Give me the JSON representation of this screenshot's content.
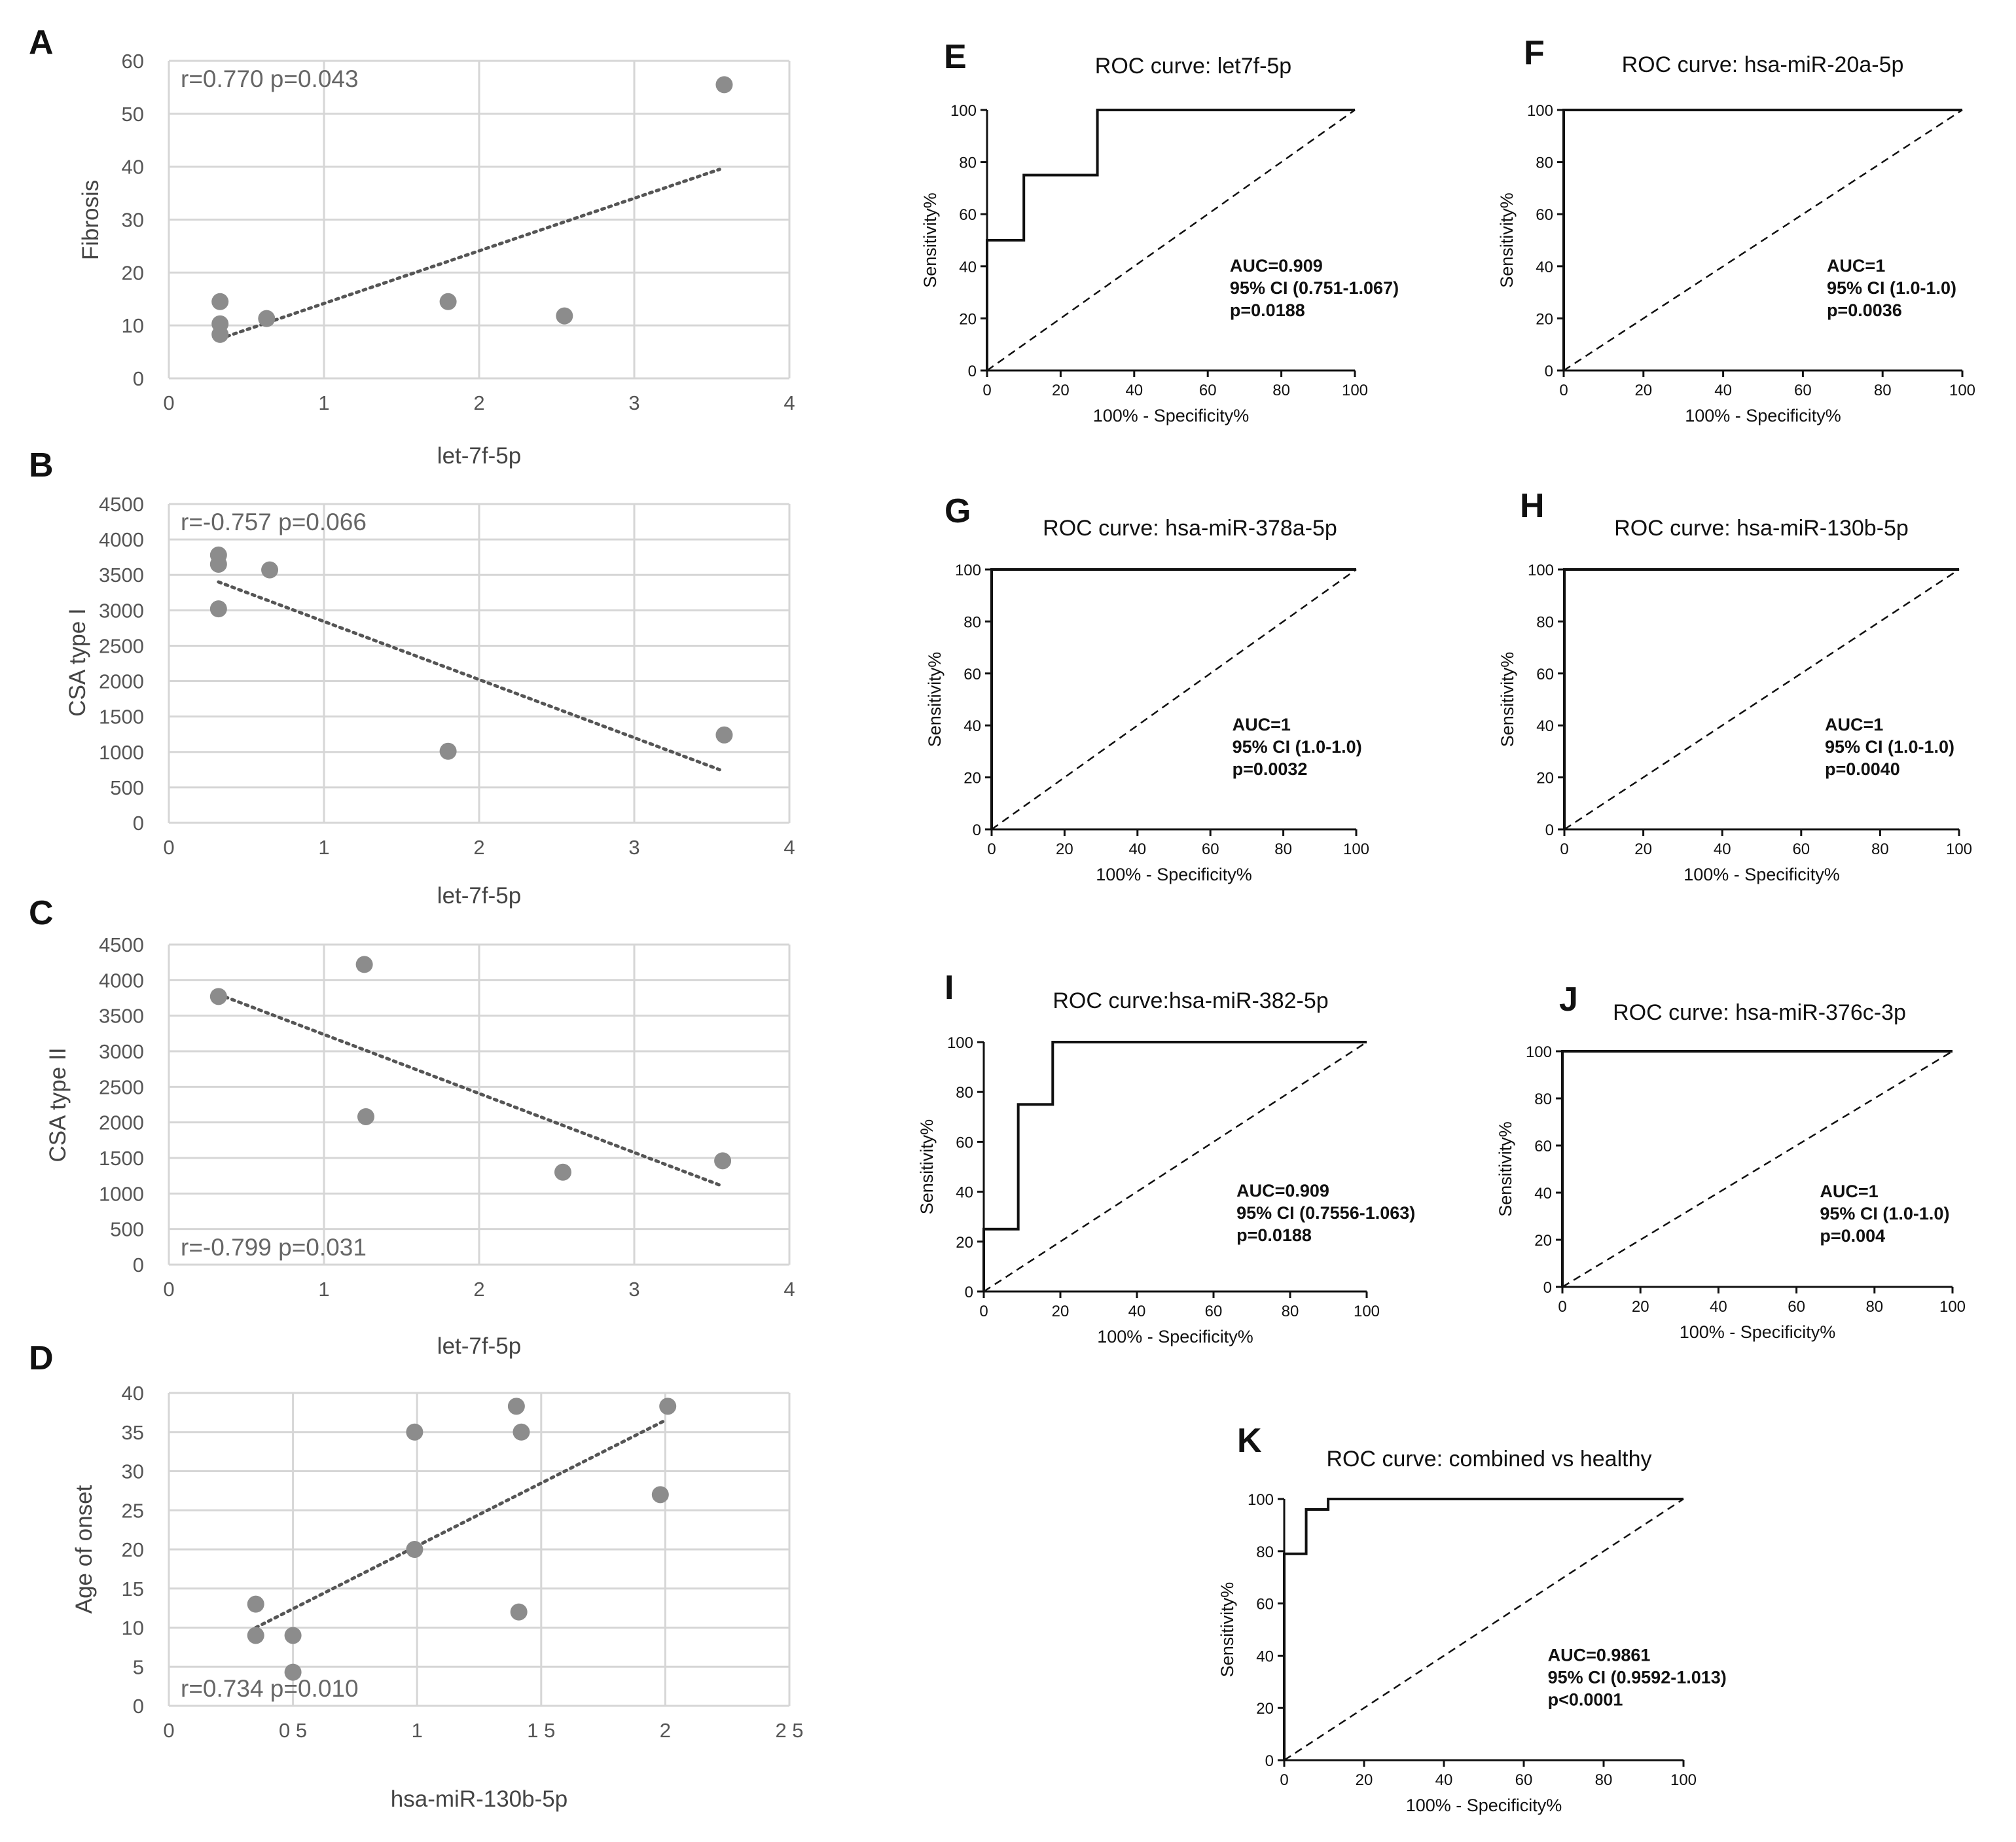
{
  "chart_data": [
    {
      "panel": "A",
      "type": "scatter",
      "xlabel": "let-7f-5p",
      "ylabel": "Fibrosis",
      "xlim": [
        0,
        4
      ],
      "ylim": [
        0,
        60
      ],
      "xticks": [
        "0",
        "1",
        "2",
        "3",
        "4"
      ],
      "yticks": [
        "0",
        "10",
        "20",
        "30",
        "40",
        "50",
        "60"
      ],
      "points": [
        [
          0.33,
          14.5
        ],
        [
          0.33,
          10.3
        ],
        [
          0.33,
          8.3
        ],
        [
          0.63,
          11.3
        ],
        [
          1.8,
          14.5
        ],
        [
          2.55,
          11.8
        ],
        [
          3.58,
          55.5
        ]
      ],
      "trendline": [
        [
          0.33,
          7.5
        ],
        [
          3.55,
          39.5
        ]
      ],
      "stats": "r=0.770   p=0.043",
      "stats_pos": "top-left"
    },
    {
      "panel": "B",
      "type": "scatter",
      "xlabel": "let-7f-5p",
      "ylabel": "CSA type I",
      "xlim": [
        0,
        4
      ],
      "ylim": [
        0,
        4500
      ],
      "xticks": [
        "0",
        "1",
        "2",
        "3",
        "4"
      ],
      "yticks": [
        "0",
        "500",
        "1000",
        "1500",
        "2000",
        "2500",
        "3000",
        "3500",
        "4000",
        "4500"
      ],
      "points": [
        [
          0.32,
          3780
        ],
        [
          0.32,
          3650
        ],
        [
          0.32,
          3020
        ],
        [
          0.65,
          3570
        ],
        [
          1.8,
          1010
        ],
        [
          3.58,
          1240
        ]
      ],
      "trendline": [
        [
          0.32,
          3400
        ],
        [
          3.55,
          750
        ]
      ],
      "stats": "r=-0.757  p=0.066",
      "stats_pos": "top-left"
    },
    {
      "panel": "C",
      "type": "scatter",
      "xlabel": "let-7f-5p",
      "ylabel": "CSA type II",
      "xlim": [
        0,
        4
      ],
      "ylim": [
        0,
        4500
      ],
      "xticks": [
        "0",
        "1",
        "2",
        "3",
        "4"
      ],
      "yticks": [
        "0",
        "500",
        "1000",
        "1500",
        "2000",
        "2500",
        "3000",
        "3500",
        "4000",
        "4500"
      ],
      "points": [
        [
          0.32,
          3770
        ],
        [
          1.26,
          4220
        ],
        [
          1.27,
          2080
        ],
        [
          2.54,
          1300
        ],
        [
          3.57,
          1460
        ]
      ],
      "trendline": [
        [
          0.32,
          3800
        ],
        [
          3.55,
          1120
        ]
      ],
      "stats": "r=-0.799  p=0.031",
      "stats_pos": "bottom-left"
    },
    {
      "panel": "D",
      "type": "scatter",
      "xlabel": "hsa-miR-130b-5p",
      "ylabel": "Age of onset",
      "xlim": [
        0,
        2.5
      ],
      "ylim": [
        0,
        40
      ],
      "xticks": [
        "0",
        "0 5",
        "1",
        "1 5",
        "2",
        "2 5"
      ],
      "yticks": [
        "0",
        "5",
        "10",
        "15",
        "20",
        "25",
        "30",
        "35",
        "40"
      ],
      "points": [
        [
          0.35,
          13
        ],
        [
          0.35,
          9
        ],
        [
          0.5,
          9
        ],
        [
          0.5,
          4.3
        ],
        [
          0.99,
          35
        ],
        [
          0.99,
          20
        ],
        [
          1.4,
          38.3
        ],
        [
          1.42,
          35
        ],
        [
          1.41,
          12
        ],
        [
          1.98,
          27
        ],
        [
          2.01,
          38.3
        ]
      ],
      "trendline": [
        [
          0.35,
          10
        ],
        [
          2.0,
          36.5
        ]
      ],
      "stats": "r=0.734   p=0.010",
      "stats_pos": "bottom-left"
    },
    {
      "panel": "E",
      "type": "line",
      "title": "ROC curve: let7f-5p",
      "xlabel": "100% - Specificity%",
      "ylabel": "Sensitivity%",
      "xlim": [
        0,
        100
      ],
      "ylim": [
        0,
        100
      ],
      "ticks": [
        "0",
        "20",
        "40",
        "60",
        "80",
        "100"
      ],
      "roc": [
        [
          0,
          0
        ],
        [
          0,
          50
        ],
        [
          10,
          50
        ],
        [
          10,
          75
        ],
        [
          30,
          75
        ],
        [
          30,
          100
        ],
        [
          100,
          100
        ]
      ],
      "annotations": [
        "AUC=0.909",
        "95% CI (0.751-1.067)",
        "p=0.0188"
      ]
    },
    {
      "panel": "F",
      "type": "line",
      "title": "ROC curve: hsa-miR-20a-5p",
      "xlabel": "100% - Specificity%",
      "ylabel": "Sensitivity%",
      "xlim": [
        0,
        100
      ],
      "ylim": [
        0,
        100
      ],
      "ticks": [
        "0",
        "20",
        "40",
        "60",
        "80",
        "100"
      ],
      "roc": [
        [
          0,
          0
        ],
        [
          0,
          100
        ],
        [
          100,
          100
        ]
      ],
      "annotations": [
        "AUC=1",
        "95% CI (1.0-1.0)",
        "p=0.0036"
      ]
    },
    {
      "panel": "G",
      "type": "line",
      "title": "ROC curve: hsa-miR-378a-5p",
      "xlabel": "100% - Specificity%",
      "ylabel": "Sensitivity%",
      "xlim": [
        0,
        100
      ],
      "ylim": [
        0,
        100
      ],
      "ticks": [
        "0",
        "20",
        "40",
        "60",
        "80",
        "100"
      ],
      "roc": [
        [
          0,
          0
        ],
        [
          0,
          100
        ],
        [
          100,
          100
        ]
      ],
      "annotations": [
        "AUC=1",
        "95% CI (1.0-1.0)",
        "p=0.0032"
      ]
    },
    {
      "panel": "H",
      "type": "line",
      "title": "ROC curve: hsa-miR-130b-5p",
      "xlabel": "100% - Specificity%",
      "ylabel": "Sensitivity%",
      "xlim": [
        0,
        100
      ],
      "ylim": [
        0,
        100
      ],
      "ticks": [
        "0",
        "20",
        "40",
        "60",
        "80",
        "100"
      ],
      "roc": [
        [
          0,
          0
        ],
        [
          0,
          100
        ],
        [
          100,
          100
        ]
      ],
      "annotations": [
        "AUC=1",
        "95% CI (1.0-1.0)",
        "p=0.0040"
      ]
    },
    {
      "panel": "I",
      "type": "line",
      "title": "ROC curve:hsa-miR-382-5p",
      "xlabel": "100% - Specificity%",
      "ylabel": "Sensitivity%",
      "xlim": [
        0,
        100
      ],
      "ylim": [
        0,
        100
      ],
      "ticks": [
        "0",
        "20",
        "40",
        "60",
        "80",
        "100"
      ],
      "roc": [
        [
          0,
          0
        ],
        [
          0,
          25
        ],
        [
          9,
          25
        ],
        [
          9,
          75
        ],
        [
          18,
          75
        ],
        [
          18,
          100
        ],
        [
          100,
          100
        ]
      ],
      "annotations": [
        "AUC=0.909",
        "95% CI (0.7556-1.063)",
        "p=0.0188"
      ]
    },
    {
      "panel": "J",
      "type": "line",
      "title": "ROC curve: hsa-miR-376c-3p",
      "xlabel": "100% - Specificity%",
      "ylabel": "Sensitivity%",
      "xlim": [
        0,
        100
      ],
      "ylim": [
        0,
        100
      ],
      "ticks": [
        "0",
        "20",
        "40",
        "60",
        "80",
        "100"
      ],
      "roc": [
        [
          0,
          0
        ],
        [
          0,
          100
        ],
        [
          100,
          100
        ]
      ],
      "annotations": [
        "AUC=1",
        "95% CI (1.0-1.0)",
        "p=0.004"
      ]
    },
    {
      "panel": "K",
      "type": "line",
      "title": "ROC curve: combined vs healthy",
      "xlabel": "100% - Specificity%",
      "ylabel": "Sensitivity%",
      "xlim": [
        0,
        100
      ],
      "ylim": [
        0,
        100
      ],
      "ticks": [
        "0",
        "20",
        "40",
        "60",
        "80",
        "100"
      ],
      "roc": [
        [
          0,
          0
        ],
        [
          0,
          79
        ],
        [
          5.5,
          79
        ],
        [
          5.5,
          96
        ],
        [
          11,
          96
        ],
        [
          11,
          100
        ],
        [
          100,
          100
        ]
      ],
      "annotations": [
        "AUC=0.9861",
        "95% CI (0.9592-1.013)",
        "p<0.0001"
      ]
    }
  ],
  "colors": {
    "marker": "#8c8c8c",
    "trendline": "#555555",
    "grid": "#d6d6d6",
    "roc_line": "#111111"
  }
}
